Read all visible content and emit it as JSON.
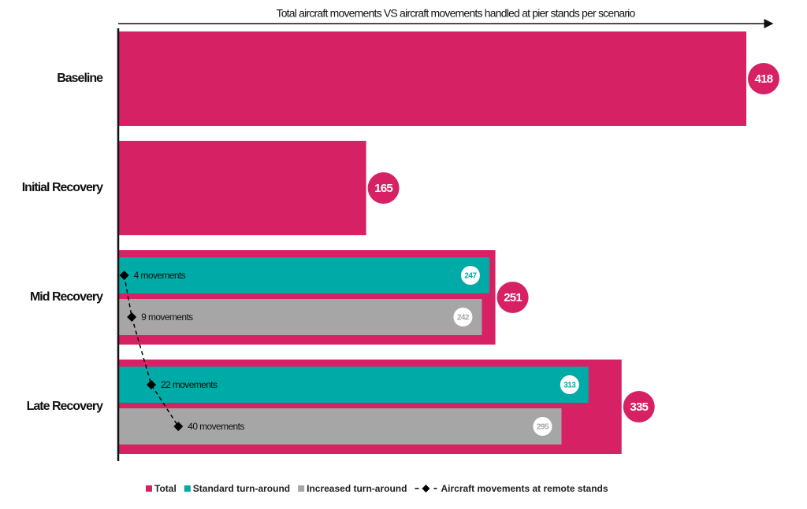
{
  "chart_data": {
    "type": "bar",
    "title": "Total aircraft movements VS aircraft movements handled at pier stands per scenario",
    "categories": [
      "Baseline",
      "Initial Recovery",
      "Mid Recovery",
      "Late Recovery"
    ],
    "series": [
      {
        "name": "Total",
        "color": "#d62264",
        "values": [
          418,
          165,
          251,
          335
        ]
      },
      {
        "name": "Standard turn-around",
        "color": "#00aaa6",
        "values": [
          null,
          null,
          247,
          313
        ]
      },
      {
        "name": "Increased turn-around",
        "color": "#a6a6a6",
        "values": [
          null,
          null,
          242,
          295
        ]
      }
    ],
    "remote_stands": {
      "name": "Aircraft movements at remote stands",
      "color": "#000000",
      "values": [
        4,
        9,
        22,
        40
      ],
      "value_labels": [
        "4 movements",
        "9 movements",
        "22 movements",
        "40 movements"
      ]
    }
  }
}
